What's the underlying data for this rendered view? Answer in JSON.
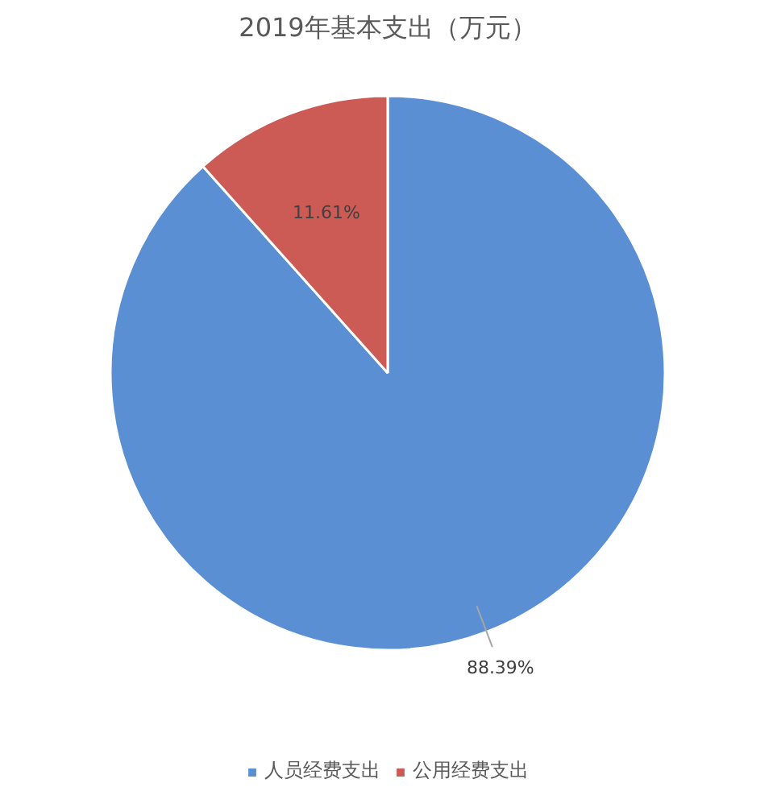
{
  "chart_data": {
    "type": "pie",
    "title": "2019年基本支出（万元）",
    "categories": [
      "人员经费支出",
      "公用经费支出"
    ],
    "values": [
      88.39,
      11.61
    ],
    "colors": [
      "#5b8fd4",
      "#cc5a55"
    ],
    "value_labels": [
      "88.39%",
      "11.61%"
    ],
    "legend": "bottom"
  }
}
